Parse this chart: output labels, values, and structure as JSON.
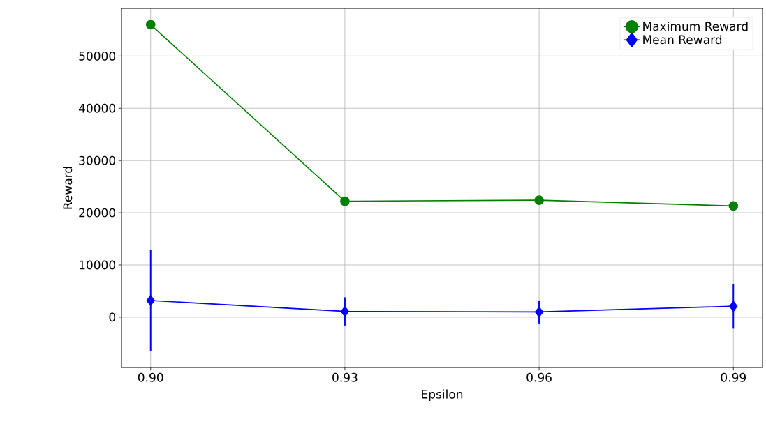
{
  "chart_data": {
    "type": "line",
    "xlabel": "Epsilon",
    "ylabel": "Reward",
    "x": [
      0.9,
      0.93,
      0.96,
      0.99
    ],
    "series": [
      {
        "name": "Maximum Reward",
        "color": "#008000",
        "marker": "circle",
        "values": [
          56000,
          22200,
          22400,
          21300
        ]
      },
      {
        "name": "Mean Reward",
        "color": "#0000ff",
        "marker": "diamond",
        "values": [
          3200,
          1100,
          1000,
          2100
        ],
        "errors": [
          9700,
          2700,
          2200,
          4300
        ]
      }
    ],
    "xlim": [
      0.8955,
      0.9945
    ],
    "xticks": [
      {
        "value": 0.9,
        "label": "0.90"
      },
      {
        "value": 0.93,
        "label": "0.93"
      },
      {
        "value": 0.96,
        "label": "0.96"
      },
      {
        "value": 0.99,
        "label": "0.99"
      }
    ],
    "ylim": [
      -9625,
      59125
    ],
    "yticks": [
      0,
      10000,
      20000,
      30000,
      40000,
      50000
    ],
    "grid": true,
    "legend": "top right",
    "line_style": "solid"
  }
}
